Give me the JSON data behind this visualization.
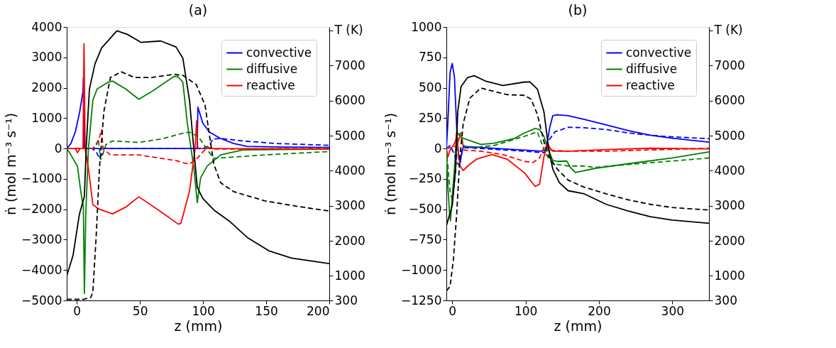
{
  "chart_data": [
    {
      "type": "line",
      "title": "(a)",
      "xlabel": "z (mm)",
      "ylabel": "ṅ (mol m⁻³ s⁻¹)",
      "legend": "top right",
      "xlim": [
        -8,
        200
      ],
      "xticks": [
        0,
        50,
        100,
        150,
        200
      ],
      "ylim": [
        -5000,
        4000
      ],
      "yticks": [
        -5000,
        -4000,
        -3000,
        -2000,
        -1000,
        0,
        1000,
        2000,
        3000,
        4000
      ],
      "y2lim": [
        300,
        8100
      ],
      "y2ticks": [
        300,
        1000,
        2000,
        3000,
        4000,
        5000,
        6000,
        7000,
        {
          "value": 8000,
          "label": "T (K)"
        }
      ],
      "series": [
        {
          "name": "convective",
          "color": "#0000ff",
          "line_style": "solid",
          "x": [
            -8,
            -4.7,
            -1.2,
            2.3,
            4.9,
            5.2,
            5.7,
            20,
            60,
            94,
            95.4,
            95.9,
            99.8,
            105,
            113.9,
            124.4,
            134.9,
            166.5,
            200
          ],
          "values": [
            0,
            165,
            540,
            1210,
            1880,
            2330,
            0,
            0,
            0,
            0,
            0,
            1360,
            840,
            540,
            330,
            165,
            70,
            45,
            37
          ]
        },
        {
          "name": "diffusive",
          "color": "#008000",
          "line_style": "solid",
          "x": [
            -8,
            -4.7,
            0.5,
            3.1,
            5.2,
            6,
            7.1,
            9.2,
            12.7,
            16.1,
            24.8,
            28.3,
            38.7,
            49.1,
            59.5,
            76.9,
            80,
            84,
            87.5,
            92.8,
            95.4,
            98.1,
            103.3,
            113.9,
            131.4,
            200
          ],
          "values": [
            0,
            -210,
            -580,
            -1400,
            -1930,
            -4770,
            -2150,
            0,
            1590,
            1960,
            2180,
            2220,
            1960,
            1620,
            1880,
            2370,
            2370,
            2180,
            840,
            -660,
            -1780,
            -960,
            -580,
            -210,
            -45,
            -20
          ]
        },
        {
          "name": "reactive",
          "color": "#ff0000",
          "line_style": "solid",
          "x": [
            -8,
            -1.2,
            0.5,
            2.6,
            4.9,
            5.7,
            6.6,
            9.2,
            12.7,
            17.9,
            28.3,
            38.7,
            49.1,
            66.5,
            80.4,
            82.5,
            89.3,
            93.7,
            94.9,
            95.8,
            105,
            200
          ],
          "values": [
            0,
            0,
            -135,
            0,
            0,
            3450,
            0,
            -660,
            -1850,
            -2000,
            -2150,
            -1930,
            -1590,
            -2080,
            -2490,
            -2460,
            -1400,
            0,
            910,
            0,
            0,
            -20
          ]
        },
        {
          "color": "#0000ff",
          "line_style": "dashed",
          "x": [
            -8,
            12,
            15.3,
            17.9,
            19.6,
            21.4,
            60,
            99.8,
            105,
            107.7,
            113.9,
            131.4,
            157.7,
            200
          ],
          "values": [
            0,
            0,
            -100,
            -320,
            -210,
            0,
            0,
            0,
            90,
            310,
            330,
            250,
            165,
            105
          ]
        },
        {
          "color": "#008000",
          "line_style": "dashed",
          "x": [
            -8,
            12.7,
            15.3,
            17,
            18.8,
            20.5,
            23.1,
            28.3,
            49.1,
            66.5,
            83.9,
            89.3,
            96.3,
            105,
            108.6,
            122.6,
            148.9,
            200
          ],
          "values": [
            0,
            0,
            90,
            310,
            -360,
            -210,
            130,
            250,
            200,
            310,
            500,
            540,
            390,
            -135,
            -320,
            -285,
            -210,
            -100
          ]
        },
        {
          "color": "#ff0000",
          "line_style": "dashed",
          "x": [
            -8,
            12.7,
            17,
            19.6,
            20.8,
            22.2,
            26.6,
            49.1,
            78.8,
            83.9,
            89.3,
            96.3,
            103.3,
            108.6,
            200
          ],
          "values": [
            0,
            0,
            240,
            610,
            0,
            -60,
            -210,
            -210,
            -400,
            -470,
            -510,
            -285,
            50,
            -20,
            0
          ]
        },
        {
          "color": "#000000",
          "line_style": "solid",
          "axis": "y2",
          "x": [
            -8,
            -3,
            2,
            6,
            7.5,
            10,
            14.4,
            19.6,
            31.8,
            40,
            51,
            66.5,
            78.6,
            84,
            89.3,
            92.8,
            95.4,
            99.8,
            108.6,
            120.9,
            134.9,
            152.5,
            170,
            200
          ],
          "values": [
            1000,
            1580,
            2750,
            3270,
            4700,
            6330,
            7050,
            7500,
            7990,
            7890,
            7660,
            7700,
            7530,
            7210,
            6000,
            4570,
            3530,
            3210,
            2880,
            2560,
            2100,
            1710,
            1510,
            1350
          ]
        },
        {
          "color": "#000000",
          "line_style": "dashed",
          "axis": "y2",
          "x": [
            -8,
            5,
            11,
            12.7,
            15.3,
            17.9,
            21.4,
            26.6,
            35.2,
            45.7,
            59.5,
            76.9,
            84,
            94.6,
            101.6,
            105,
            108.6,
            113.9,
            124.4,
            149,
            175.3,
            200
          ],
          "values": [
            330,
            330,
            380,
            540,
            2100,
            4050,
            5680,
            6660,
            6820,
            6660,
            6660,
            6750,
            6720,
            6460,
            5870,
            5030,
            4180,
            3660,
            3400,
            3140,
            2980,
            2850
          ]
        }
      ]
    },
    {
      "type": "line",
      "title": "(b)",
      "xlabel": "z (mm)",
      "ylabel": "ṅ (mol m⁻³ s⁻¹)",
      "legend": "top right",
      "xlim": [
        -8,
        350
      ],
      "xticks": [
        0,
        100,
        200,
        300
      ],
      "ylim": [
        -1250,
        1000
      ],
      "yticks": [
        -1250,
        -1000,
        -750,
        -500,
        -250,
        0,
        250,
        500,
        750,
        1000
      ],
      "y2lim": [
        300,
        8100
      ],
      "y2ticks": [
        300,
        1000,
        2000,
        3000,
        4000,
        5000,
        6000,
        7000,
        {
          "value": 8000,
          "label": "T (K)"
        }
      ],
      "series": [
        {
          "name": "convective",
          "color": "#0000ff",
          "line_style": "solid",
          "x": [
            -8,
            -6,
            -3,
            0,
            3,
            6.6,
            9,
            12,
            15,
            24,
            69,
            98.5,
            122,
            128,
            133,
            137,
            143,
            158,
            180,
            210,
            240,
            270,
            300,
            350
          ],
          "values": [
            0,
            212,
            625,
            700,
            587,
            100,
            -88,
            -70,
            15,
            15,
            -3,
            -13,
            -22,
            -3,
            175,
            270,
            278,
            270,
            240,
            194,
            147,
            109,
            85,
            53
          ]
        },
        {
          "name": "diffusive",
          "color": "#008000",
          "line_style": "solid",
          "x": [
            -8,
            -6,
            -3.6,
            -2.4,
            -0.6,
            3,
            6,
            7.5,
            12,
            21,
            39,
            57,
            84,
            98.5,
            113,
            119,
            125,
            131,
            137,
            143,
            156,
            162,
            168,
            195,
            240,
            300,
            350
          ],
          "values": [
            0,
            -312,
            -537,
            -594,
            -444,
            -163,
            137,
            128,
            91,
            72,
            34,
            44,
            81,
            128,
            165,
            156,
            100,
            -13,
            -97,
            -106,
            -103,
            -163,
            -197,
            -163,
            -125,
            -78,
            -28
          ]
        },
        {
          "name": "reactive",
          "color": "#ff0000",
          "line_style": "solid",
          "x": [
            -8,
            -6,
            -3,
            1.5,
            4.5,
            6,
            7.5,
            10.4,
            15,
            21,
            33,
            54,
            75,
            98.5,
            113,
            119,
            125,
            130,
            133,
            137,
            158,
            210,
            270,
            350
          ],
          "values": [
            0,
            -69,
            -13,
            25,
            62,
            119,
            25,
            -144,
            -181,
            -144,
            -88,
            -50,
            -88,
            -200,
            -312,
            -294,
            -69,
            44,
            6,
            -22,
            -22,
            -9,
            2,
            -3
          ]
        },
        {
          "color": "#0000ff",
          "line_style": "dashed",
          "x": [
            -8,
            -3,
            1.5,
            7.5,
            10.4,
            13.4,
            18,
            98.5,
            125,
            131,
            140,
            158,
            180,
            210,
            240,
            270,
            300,
            350
          ],
          "values": [
            0,
            25,
            -30,
            -125,
            -144,
            -13,
            8,
            -22,
            -35,
            62,
            137,
            175,
            171,
            156,
            128,
            109,
            96,
            81
          ]
        },
        {
          "color": "#008000",
          "line_style": "dashed",
          "x": [
            -8,
            -3,
            0,
            4.5,
            7.5,
            12,
            15,
            24,
            57,
            98.5,
            116,
            122,
            128,
            137,
            158,
            180,
            195,
            240,
            300,
            350
          ],
          "values": [
            0,
            -350,
            -425,
            -200,
            100,
            128,
            25,
            6,
            25,
            100,
            137,
            44,
            -50,
            -125,
            -144,
            -144,
            -156,
            -131,
            -103,
            -78
          ]
        },
        {
          "color": "#ff0000",
          "line_style": "dashed",
          "x": [
            -8,
            7.5,
            10.4,
            13.4,
            16.4,
            39,
            69,
            98.5,
            110,
            119,
            125,
            128,
            133,
            158,
            210,
            350
          ],
          "values": [
            0,
            25,
            119,
            62,
            -13,
            -22,
            -50,
            -106,
            -116,
            -78,
            6,
            34,
            -13,
            -22,
            -22,
            2
          ]
        },
        {
          "color": "#000000",
          "line_style": "solid",
          "axis": "y2",
          "x": [
            -8,
            0,
            4.5,
            7.5,
            12,
            21,
            30,
            45,
            69,
            98.5,
            106,
            116,
            125,
            131,
            137,
            146,
            158,
            180,
            210,
            240,
            270,
            300,
            350
          ],
          "values": [
            2426,
            3010,
            4050,
            5680,
            6400,
            6660,
            6710,
            6560,
            6430,
            6530,
            6530,
            6330,
            5680,
            4700,
            4050,
            3660,
            3430,
            3340,
            3040,
            2850,
            2690,
            2590,
            2500
          ]
        },
        {
          "color": "#000000",
          "line_style": "dashed",
          "axis": "y2",
          "x": [
            -8,
            -3,
            1.5,
            6,
            10.4,
            15,
            24,
            39,
            57,
            75,
            98.5,
            107.5,
            116,
            125,
            131,
            143,
            158,
            180,
            210,
            240,
            270,
            300,
            350
          ],
          "values": [
            572,
            700,
            1450,
            2750,
            4380,
            5350,
            6070,
            6360,
            6260,
            6170,
            6150,
            6040,
            5610,
            4830,
            4440,
            4050,
            3730,
            3530,
            3340,
            3170,
            3040,
            2950,
            2880
          ]
        }
      ]
    }
  ]
}
